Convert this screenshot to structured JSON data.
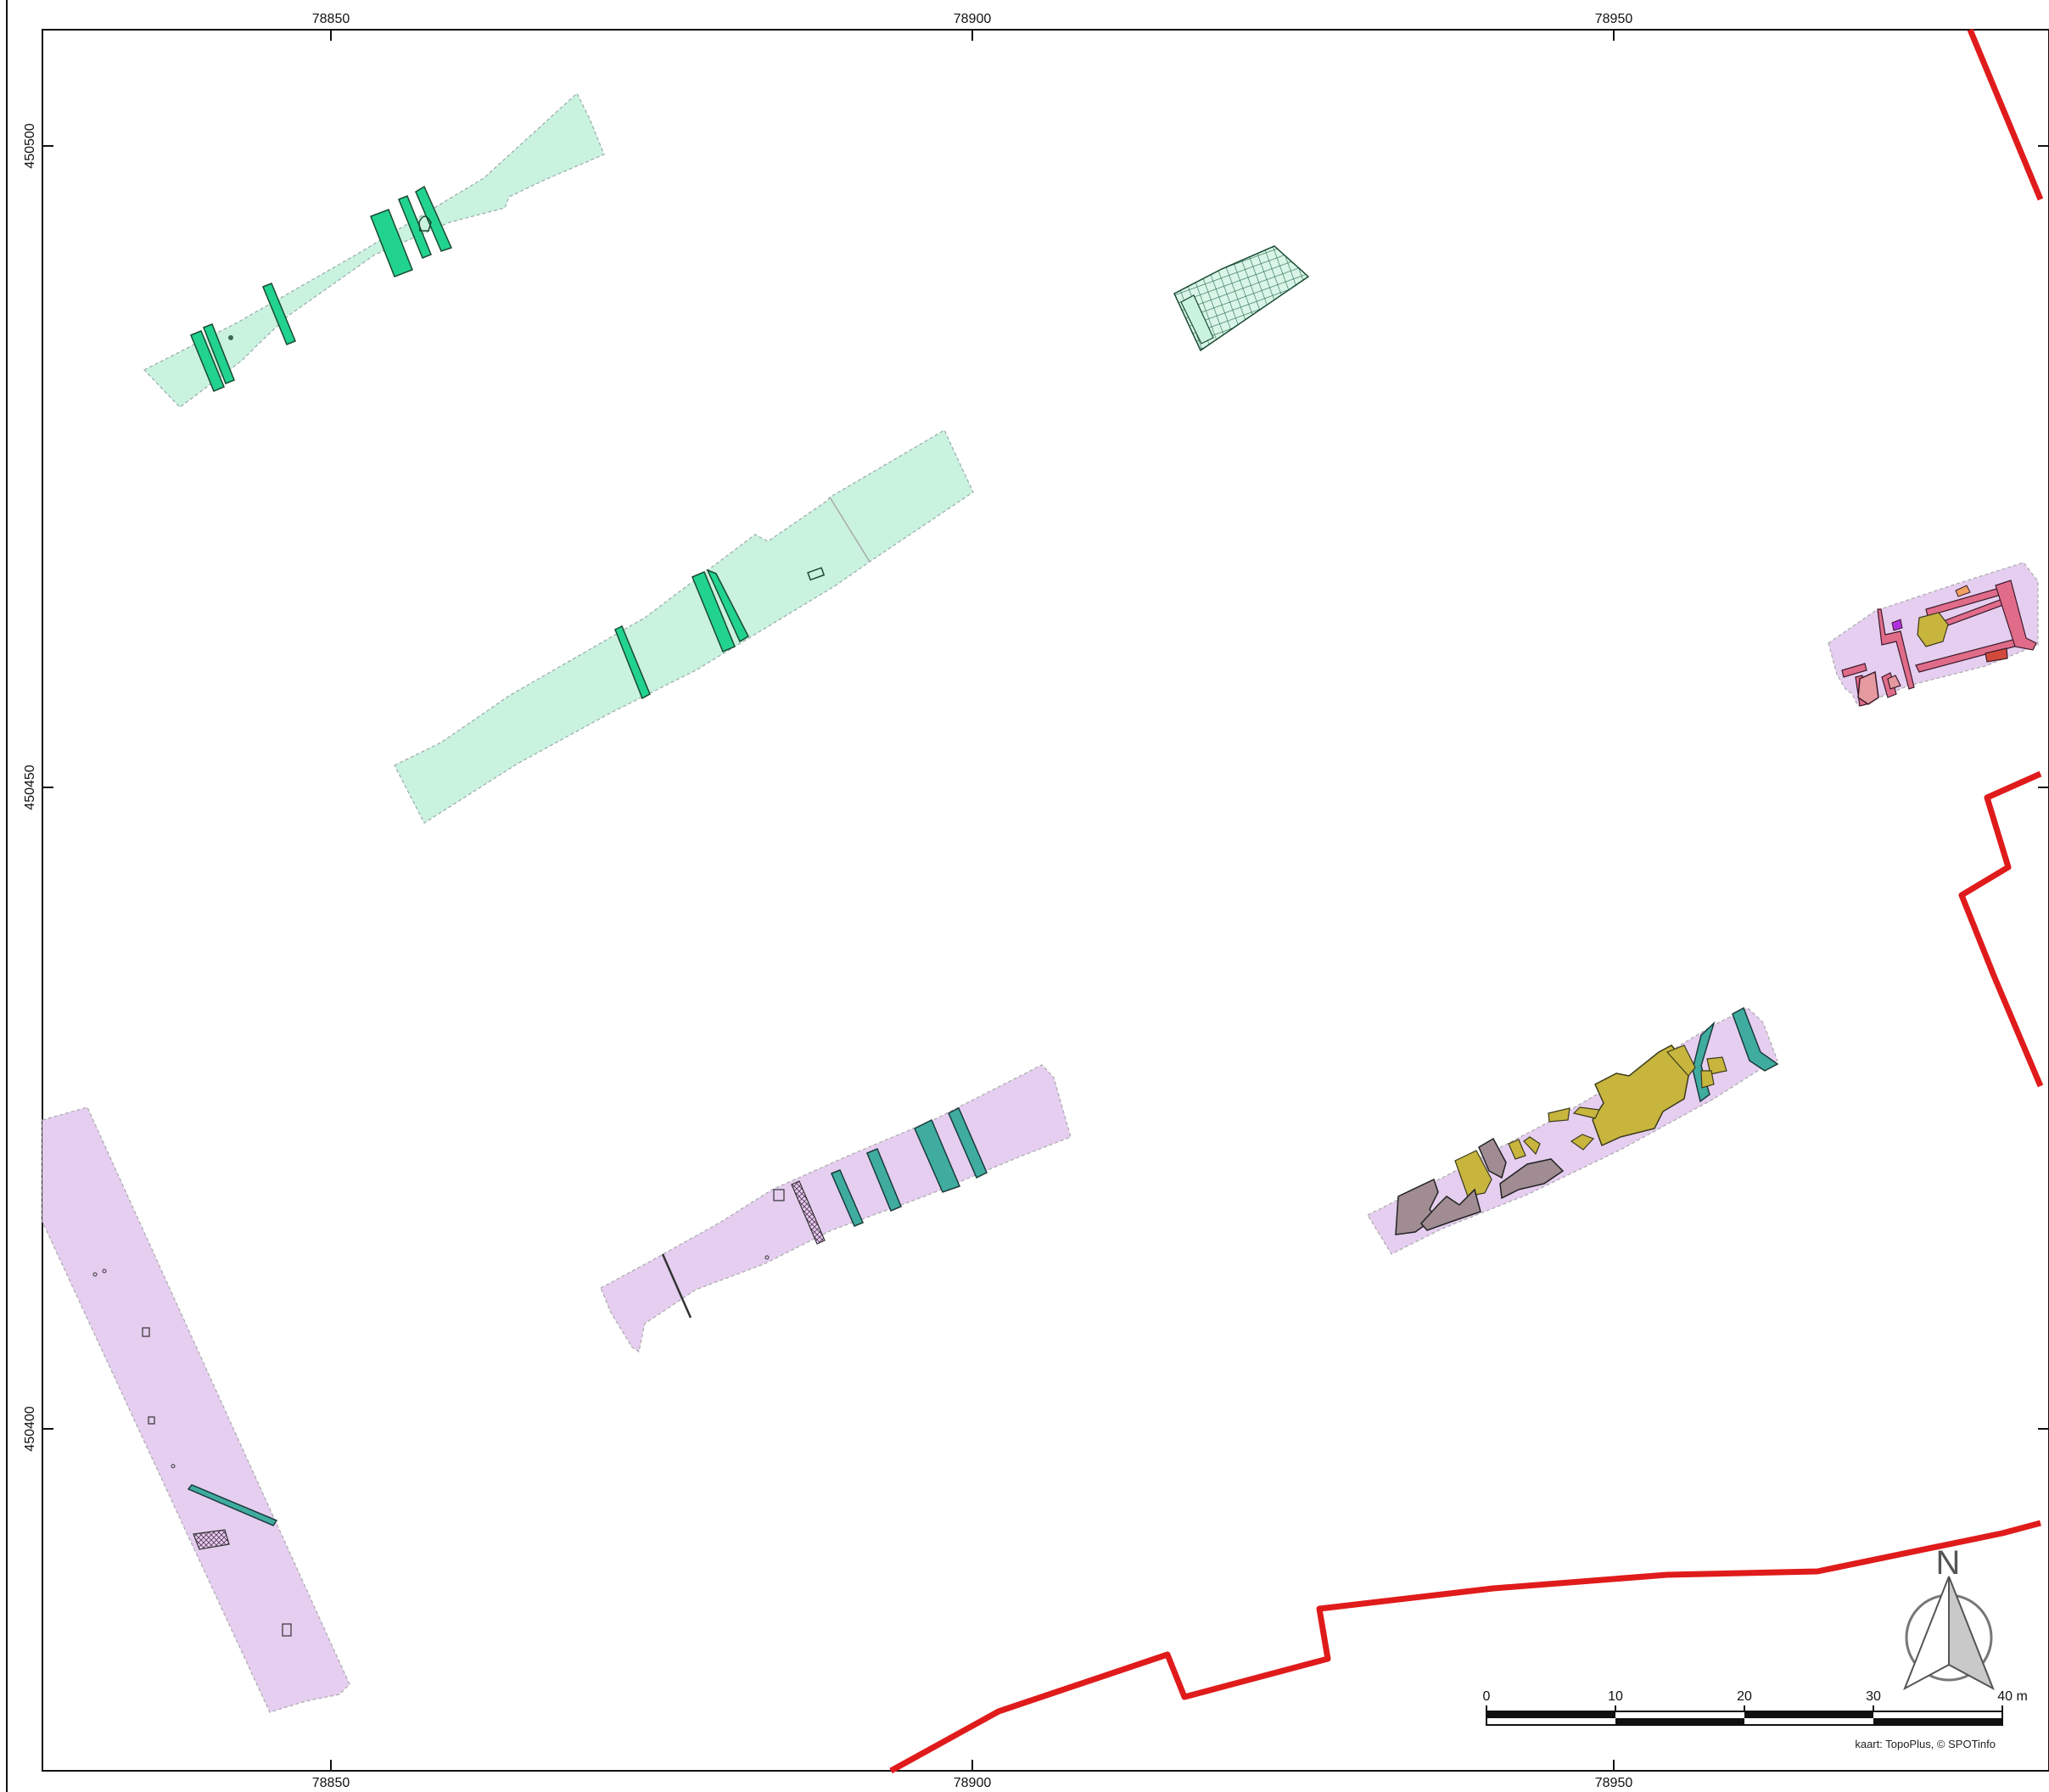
{
  "map": {
    "x_ticks": [
      "78850",
      "78900",
      "78950"
    ],
    "y_ticks": [
      "450500",
      "450450",
      "450400"
    ],
    "north_label": "N",
    "scale_labels": [
      "0",
      "10",
      "20",
      "30",
      "40 m"
    ],
    "credit": "kaart: TopoPlus, © SPOTinfo"
  },
  "colors": {
    "trench_green": "#c9f2df",
    "feature_green": "#22d38f",
    "trench_purple": "#e5cef0",
    "feature_teal": "#40aca0",
    "feature_olive": "#c8b53e",
    "feature_brown": "#a08c92",
    "feature_pink": "#e06c8a",
    "boundary_red": "#e01b1b"
  }
}
